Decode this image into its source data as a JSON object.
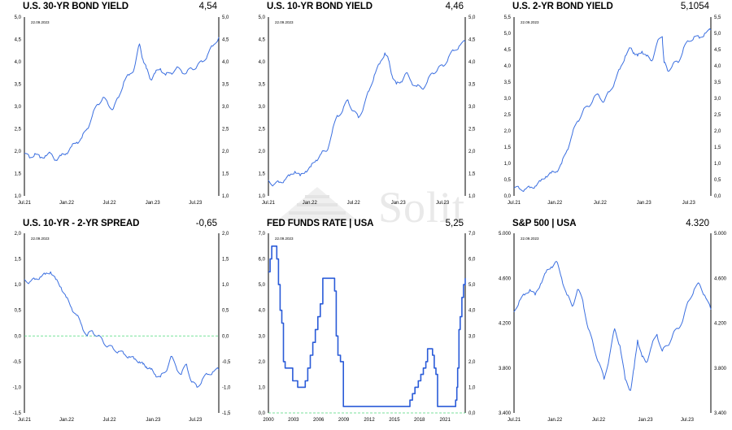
{
  "watermark": {
    "text": "Solit"
  },
  "chart_data": [
    {
      "id": "p1",
      "type": "line",
      "title": "U.S. 30-YR BOND YIELD",
      "latest_value": "4,54",
      "date_stamp": "22.09.2023",
      "x_ticks": [
        "Jul.21",
        "Jan.22",
        "Jul.22",
        "Jan.23",
        "Jul.23"
      ],
      "x_tick_pos": [
        0.0,
        0.2175,
        0.4375,
        0.66,
        0.88
      ],
      "y_ticks": [
        "1,0",
        "1,5",
        "2,0",
        "2,5",
        "3,0",
        "3,5",
        "4,0",
        "4,5",
        "5,0"
      ],
      "y_ticks_right": [
        "1,0",
        "1,5",
        "2,0",
        "2,5",
        "3,0",
        "3,5",
        "4,0",
        "4,5",
        "5,0"
      ],
      "ylim": [
        1.0,
        5.0
      ],
      "xlim": [
        2021.5,
        2023.73
      ],
      "color": "#3b6fe0",
      "zero_line": false,
      "series": [
        {
          "x": [
            2021.5,
            2021.56,
            2021.62,
            2021.68,
            2021.74,
            2021.8,
            2021.86,
            2021.92,
            2021.98,
            2022.04,
            2022.1,
            2022.16,
            2022.22,
            2022.28,
            2022.34,
            2022.4,
            2022.46,
            2022.52,
            2022.58,
            2022.64,
            2022.7,
            2022.76,
            2022.82,
            2022.86,
            2022.9,
            2022.95,
            2023.0,
            2023.06,
            2023.12,
            2023.18,
            2023.24,
            2023.3,
            2023.36,
            2023.42,
            2023.48,
            2023.54,
            2023.6,
            2023.66,
            2023.73
          ],
          "y": [
            1.95,
            1.85,
            1.95,
            1.85,
            1.9,
            1.95,
            1.8,
            1.9,
            1.95,
            2.1,
            2.2,
            2.3,
            2.5,
            2.8,
            3.05,
            3.2,
            3.05,
            2.95,
            3.2,
            3.55,
            3.7,
            3.85,
            4.4,
            4.05,
            3.85,
            3.6,
            3.75,
            3.85,
            3.7,
            3.75,
            3.85,
            3.8,
            3.75,
            3.85,
            3.9,
            4.0,
            4.15,
            4.35,
            4.55
          ]
        }
      ]
    },
    {
      "id": "p2",
      "type": "line",
      "title": "U.S. 10-YR BOND YIELD",
      "latest_value": "4,46",
      "date_stamp": "22.09.2023",
      "x_ticks": [
        "Jul.21",
        "Jan.22",
        "Jul.22",
        "Jan.23",
        "Jul.23"
      ],
      "x_tick_pos": [
        0.0,
        0.21,
        0.4325,
        0.66,
        0.885
      ],
      "y_ticks": [
        "1,0",
        "1,5",
        "2,0",
        "2,5",
        "3,0",
        "3,5",
        "4,0",
        "4,5",
        "5,0"
      ],
      "y_ticks_right": [
        "1,0",
        "1,5",
        "2,0",
        "2,5",
        "3,0",
        "3,5",
        "4,0",
        "4,5",
        "5,0"
      ],
      "ylim": [
        1.0,
        5.0
      ],
      "xlim": [
        2021.5,
        2023.73
      ],
      "color": "#3b6fe0",
      "zero_line": false,
      "series": [
        {
          "x": [
            2021.5,
            2021.56,
            2021.62,
            2021.68,
            2021.74,
            2021.8,
            2021.86,
            2021.92,
            2021.98,
            2022.04,
            2022.1,
            2022.16,
            2022.22,
            2022.28,
            2022.34,
            2022.4,
            2022.46,
            2022.52,
            2022.58,
            2022.64,
            2022.7,
            2022.76,
            2022.82,
            2022.86,
            2022.9,
            2022.95,
            2023.0,
            2023.06,
            2023.12,
            2023.18,
            2023.24,
            2023.3,
            2023.36,
            2023.42,
            2023.48,
            2023.54,
            2023.6,
            2023.66,
            2023.73
          ],
          "y": [
            1.35,
            1.25,
            1.3,
            1.35,
            1.45,
            1.55,
            1.45,
            1.55,
            1.65,
            1.8,
            1.95,
            2.0,
            2.4,
            2.8,
            2.9,
            3.15,
            2.9,
            2.75,
            3.0,
            3.35,
            3.7,
            3.95,
            4.2,
            4.05,
            3.7,
            3.5,
            3.55,
            3.75,
            3.55,
            3.45,
            3.4,
            3.55,
            3.75,
            3.85,
            3.9,
            4.1,
            4.25,
            4.35,
            4.45
          ]
        }
      ]
    },
    {
      "id": "p3",
      "type": "line",
      "title": "U.S. 2-YR BOND YIELD",
      "latest_value": "5,1054",
      "date_stamp": "22.09.2023",
      "x_ticks": [
        "Jul.21",
        "Jan.22",
        "Jul.22",
        "Jan.23",
        "Jul.23"
      ],
      "x_tick_pos": [
        0.0,
        0.2075,
        0.4375,
        0.66,
        0.8875
      ],
      "y_ticks": [
        "0,0",
        "0,5",
        "1,0",
        "1,5",
        "2,0",
        "2,5",
        "3,0",
        "3,5",
        "4,0",
        "4,5",
        "5,0",
        "5,5"
      ],
      "y_ticks_right": [
        "0,0",
        "0,5",
        "1,0",
        "1,5",
        "2,0",
        "2,5",
        "3,0",
        "3,5",
        "4,0",
        "4,5",
        "5,0",
        "5,5"
      ],
      "ylim": [
        0.0,
        5.5
      ],
      "xlim": [
        2021.5,
        2023.73
      ],
      "color": "#3b6fe0",
      "zero_line": false,
      "series": [
        {
          "x": [
            2021.5,
            2021.56,
            2021.62,
            2021.68,
            2021.74,
            2021.8,
            2021.86,
            2021.92,
            2021.98,
            2022.04,
            2022.1,
            2022.16,
            2022.22,
            2022.28,
            2022.34,
            2022.4,
            2022.46,
            2022.52,
            2022.58,
            2022.64,
            2022.7,
            2022.76,
            2022.82,
            2022.86,
            2022.9,
            2022.95,
            2023.0,
            2023.06,
            2023.12,
            2023.18,
            2023.2,
            2023.24,
            2023.3,
            2023.36,
            2023.42,
            2023.48,
            2023.54,
            2023.6,
            2023.66,
            2023.73
          ],
          "y": [
            0.25,
            0.22,
            0.2,
            0.25,
            0.3,
            0.45,
            0.6,
            0.7,
            0.75,
            1.0,
            1.4,
            1.9,
            2.3,
            2.6,
            2.75,
            3.0,
            3.1,
            2.9,
            3.2,
            3.5,
            3.9,
            4.3,
            4.55,
            4.4,
            4.3,
            4.45,
            4.3,
            4.15,
            4.7,
            4.9,
            4.1,
            3.85,
            4.05,
            4.1,
            4.55,
            4.75,
            4.9,
            4.85,
            5.0,
            5.1
          ]
        }
      ]
    },
    {
      "id": "p4",
      "type": "line",
      "title": "U.S. 10-YR - 2-YR SPREAD",
      "latest_value": "-0,65",
      "date_stamp": "22.09.2023",
      "x_ticks": [
        "Jul.21",
        "Jan.22",
        "Jul.22",
        "Jan.23",
        "Jul.23"
      ],
      "x_tick_pos": [
        0.0,
        0.2175,
        0.4375,
        0.6625,
        0.88
      ],
      "y_ticks": [
        "-1,5",
        "-1,0",
        "-0,5",
        "0,0",
        "0,5",
        "1,0",
        "1,5",
        "2,0"
      ],
      "y_ticks_right": [
        "-1,5",
        "-1,0",
        "-0,5",
        "0,0",
        "0,5",
        "1,0",
        "1,5",
        "2,0"
      ],
      "ylim": [
        -1.5,
        2.0
      ],
      "xlim": [
        2021.5,
        2023.73
      ],
      "color": "#3b6fe0",
      "zero_line": true,
      "series": [
        {
          "x": [
            2021.5,
            2021.56,
            2021.62,
            2021.68,
            2021.74,
            2021.8,
            2021.86,
            2021.92,
            2021.98,
            2022.04,
            2022.1,
            2022.16,
            2022.22,
            2022.28,
            2022.34,
            2022.4,
            2022.46,
            2022.52,
            2022.58,
            2022.64,
            2022.7,
            2022.76,
            2022.82,
            2022.86,
            2022.9,
            2022.95,
            2023.0,
            2023.06,
            2023.12,
            2023.18,
            2023.24,
            2023.3,
            2023.36,
            2023.42,
            2023.48,
            2023.54,
            2023.6,
            2023.66,
            2023.73
          ],
          "y": [
            1.1,
            1.05,
            1.1,
            1.15,
            1.2,
            1.25,
            1.1,
            0.95,
            0.75,
            0.55,
            0.4,
            0.2,
            0.0,
            0.1,
            0.0,
            -0.1,
            -0.2,
            -0.25,
            -0.3,
            -0.35,
            -0.4,
            -0.45,
            -0.5,
            -0.55,
            -0.6,
            -0.65,
            -0.75,
            -0.8,
            -0.7,
            -0.4,
            -0.6,
            -0.75,
            -0.55,
            -0.9,
            -1.0,
            -0.85,
            -0.75,
            -0.7,
            -0.65
          ]
        }
      ]
    },
    {
      "id": "p5",
      "type": "line",
      "title": "FED FUNDS RATE | USA",
      "latest_value": "5,25",
      "date_stamp": "22.09.2023",
      "x_ticks": [
        "2000",
        "2003",
        "2006",
        "2009",
        "2012",
        "2015",
        "2018",
        "2021"
      ],
      "x_tick_pos": [
        0.0,
        0.1275,
        0.255,
        0.3825,
        0.5125,
        0.64,
        0.7675,
        0.8975
      ],
      "y_ticks": [
        "0,0",
        "1,0",
        "2,0",
        "3,0",
        "4,0",
        "5,0",
        "6,0",
        "7,0"
      ],
      "y_ticks_right": [
        "0,0",
        "1,0",
        "2,0",
        "3,0",
        "4,0",
        "5,0",
        "6,0",
        "7,0"
      ],
      "ylim": [
        0.0,
        7.0
      ],
      "xlim": [
        2000.0,
        2023.5
      ],
      "color": "#2a5bd8",
      "zero_line": true,
      "step": true,
      "series": [
        {
          "x": [
            2000.0,
            2000.2,
            2000.4,
            2000.6,
            2001.0,
            2001.2,
            2001.4,
            2001.6,
            2001.8,
            2002.0,
            2002.9,
            2003.5,
            2004.4,
            2004.7,
            2005.0,
            2005.3,
            2005.6,
            2005.9,
            2006.2,
            2006.5,
            2007.7,
            2007.9,
            2008.1,
            2008.3,
            2008.6,
            2008.95,
            2015.9,
            2016.9,
            2017.2,
            2017.5,
            2017.9,
            2018.2,
            2018.5,
            2018.8,
            2019.0,
            2019.6,
            2019.8,
            2020.0,
            2020.2,
            2022.2,
            2022.35,
            2022.5,
            2022.6,
            2022.75,
            2022.9,
            2023.1,
            2023.3,
            2023.5
          ],
          "y": [
            5.5,
            6.0,
            6.5,
            6.5,
            6.0,
            5.0,
            4.0,
            3.5,
            2.0,
            1.75,
            1.25,
            1.0,
            1.25,
            1.75,
            2.25,
            2.75,
            3.25,
            3.75,
            4.25,
            5.25,
            5.25,
            4.75,
            3.0,
            2.25,
            2.0,
            0.25,
            0.25,
            0.5,
            0.75,
            1.0,
            1.25,
            1.5,
            1.75,
            2.0,
            2.5,
            2.25,
            1.75,
            1.5,
            0.25,
            0.25,
            0.5,
            1.0,
            1.75,
            3.25,
            3.75,
            4.5,
            5.0,
            5.25
          ]
        }
      ]
    },
    {
      "id": "p6",
      "type": "line",
      "title": "S&P 500 | USA",
      "latest_value": "4.320",
      "date_stamp": "22.09.2023",
      "x_ticks": [
        "Jul.21",
        "Jan.22",
        "Jul.22",
        "Jan.23",
        "Jul.23"
      ],
      "x_tick_pos": [
        0.0,
        0.2075,
        0.43,
        0.6675,
        0.88
      ],
      "y_ticks": [
        "3.400",
        "3.800",
        "4.200",
        "4.600",
        "5.000"
      ],
      "y_ticks_right": [
        "3.400",
        "3.800",
        "4.200",
        "4.600",
        "5.000"
      ],
      "ylim": [
        3400,
        5000
      ],
      "xlim": [
        2021.5,
        2023.73
      ],
      "color": "#3b6fe0",
      "zero_line": false,
      "series": [
        {
          "x": [
            2021.5,
            2021.56,
            2021.62,
            2021.68,
            2021.74,
            2021.8,
            2021.86,
            2021.92,
            2021.98,
            2022.04,
            2022.1,
            2022.16,
            2022.22,
            2022.28,
            2022.34,
            2022.4,
            2022.46,
            2022.52,
            2022.58,
            2022.64,
            2022.7,
            2022.76,
            2022.82,
            2022.86,
            2022.9,
            2022.95,
            2023.0,
            2023.06,
            2023.12,
            2023.18,
            2023.24,
            2023.3,
            2023.36,
            2023.42,
            2023.48,
            2023.54,
            2023.6,
            2023.66,
            2023.73
          ],
          "y": [
            4300,
            4400,
            4450,
            4500,
            4450,
            4550,
            4650,
            4700,
            4750,
            4600,
            4450,
            4350,
            4500,
            4400,
            4150,
            4000,
            3850,
            3700,
            3900,
            4150,
            4000,
            3700,
            3600,
            3800,
            4050,
            3900,
            3850,
            4000,
            4100,
            3950,
            4000,
            4100,
            4150,
            4250,
            4400,
            4500,
            4550,
            4450,
            4320
          ]
        }
      ]
    }
  ]
}
